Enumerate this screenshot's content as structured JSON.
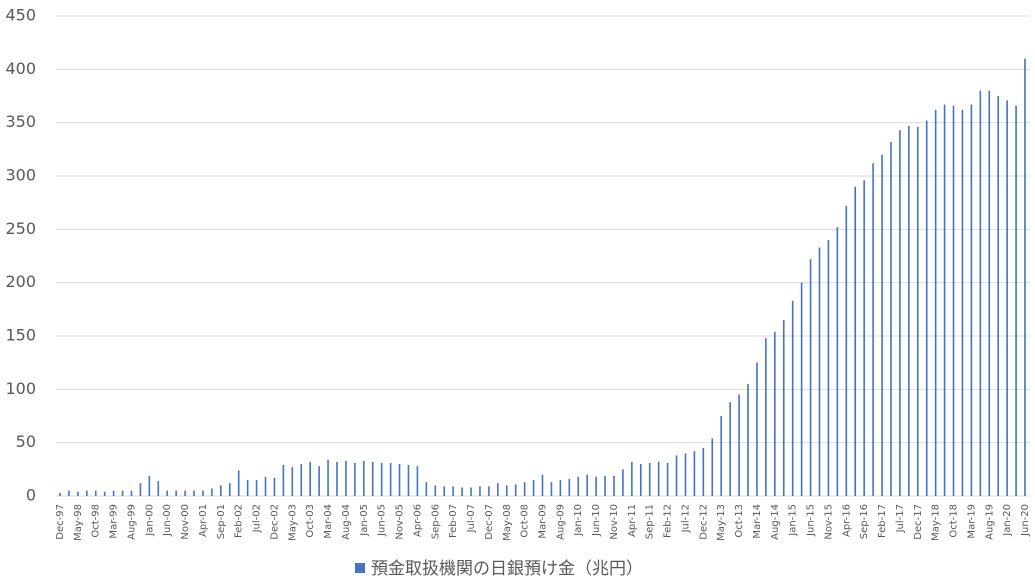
{
  "chart_data": {
    "type": "bar",
    "categories": [
      "Dec-97",
      null,
      "May-98",
      null,
      "Oct-98",
      null,
      "Mar-99",
      null,
      "Aug-99",
      null,
      "Jan-00",
      null,
      "Jun-00",
      null,
      "Nov-00",
      null,
      "Apr-01",
      null,
      "Sep-01",
      null,
      "Feb-02",
      null,
      "Jul-02",
      null,
      "Dec-02",
      null,
      "May-03",
      null,
      "Oct-03",
      null,
      "Mar-04",
      null,
      "Aug-04",
      null,
      "Jan-05",
      null,
      "Jun-05",
      null,
      "Nov-05",
      null,
      "Apr-06",
      null,
      "Sep-06",
      null,
      "Feb-07",
      null,
      "Jul-07",
      null,
      "Dec-07",
      null,
      "May-08",
      null,
      "Oct-08",
      null,
      "Mar-09",
      null,
      "Aug-09",
      null,
      "Jan-10",
      null,
      "Jun-10",
      null,
      "Nov-10",
      null,
      "Apr-11",
      null,
      "Sep-11",
      null,
      "Feb-12",
      null,
      "Jul-12",
      null,
      "Dec-12",
      null,
      "May-13",
      null,
      "Oct-13",
      null,
      "Mar-14",
      null,
      "Aug-14",
      null,
      "Jan-15",
      null,
      "Jun-15",
      null,
      "Nov-15",
      null,
      "Apr-16",
      null,
      "Sep-16",
      null,
      "Feb-17",
      null,
      "Jul-17",
      null,
      "Dec-17",
      null,
      "May-18",
      null,
      "Oct-18",
      null,
      "Mar-19",
      null,
      "Aug-19",
      null,
      "Jan-20",
      null,
      "Jun-20"
    ],
    "series": [
      {
        "name": "預金取扱機関の日銀預け金（兆円）",
        "color": "#4472c4",
        "values": [
          3,
          5,
          4,
          5,
          5,
          4,
          5,
          5,
          5,
          12,
          19,
          14,
          5,
          5,
          5,
          5,
          5,
          7,
          10,
          12,
          24,
          15,
          15,
          18,
          17,
          29,
          27,
          30,
          32,
          28,
          34,
          32,
          33,
          31,
          33,
          32,
          31,
          31,
          30,
          29,
          28,
          13,
          10,
          9,
          9,
          8,
          8,
          9,
          9,
          12,
          10,
          11,
          13,
          15,
          20,
          13,
          15,
          16,
          18,
          20,
          18,
          19,
          19,
          25,
          32,
          30,
          31,
          32,
          31,
          38,
          40,
          42,
          45,
          54,
          75,
          88,
          95,
          105,
          125,
          148,
          154,
          165,
          183,
          200,
          222,
          233,
          240,
          252,
          272,
          290,
          296,
          312,
          320,
          332,
          343,
          347,
          346,
          352,
          362,
          367,
          366,
          362,
          367,
          380,
          380,
          375,
          371,
          366,
          410
        ]
      }
    ],
    "ylim": [
      0,
      450
    ],
    "yticks": [
      0,
      50,
      100,
      150,
      200,
      250,
      300,
      350,
      400,
      450
    ],
    "grid": true,
    "legend": "bottom"
  }
}
